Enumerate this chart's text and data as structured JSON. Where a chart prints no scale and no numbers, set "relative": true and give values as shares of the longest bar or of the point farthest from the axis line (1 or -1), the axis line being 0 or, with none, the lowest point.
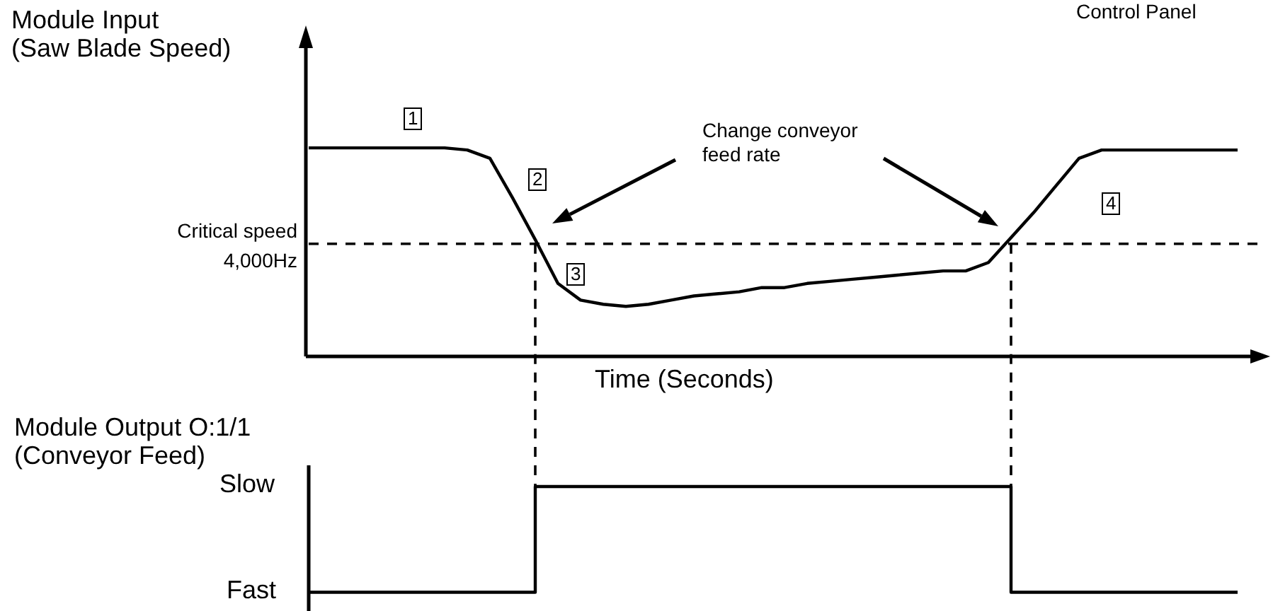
{
  "chart_data": [
    {
      "type": "line",
      "ylabel": "Module Input\n(Saw Blade Speed)",
      "xlabel": "Time (Seconds)",
      "relative": true,
      "marker": "none",
      "line_style": "solid",
      "categories": [
        null,
        null,
        null,
        null,
        null,
        null,
        null,
        null,
        null,
        null,
        null,
        null,
        null,
        null,
        null,
        null,
        null,
        null,
        null,
        null,
        null,
        null,
        null,
        null,
        null,
        null,
        null,
        null,
        null,
        null,
        null,
        null,
        null,
        null,
        null,
        null,
        null,
        null,
        null,
        null,
        null,
        null
      ],
      "series": [
        {
          "color": "#000000",
          "values": [
            1,
            1,
            1,
            1,
            1,
            1,
            1,
            0.99,
            0.95,
            0.76,
            0.56,
            0.35,
            0.27,
            0.25,
            0.24,
            0.25,
            0.27,
            0.29,
            0.3,
            0.31,
            0.33,
            0.33,
            0.35,
            0.36,
            0.37,
            0.38,
            0.39,
            0.4,
            0.41,
            0.41,
            0.45,
            0.57,
            0.69,
            0.82,
            0.95,
            0.99,
            0.99,
            0.99,
            0.99,
            0.99,
            0.99,
            0.99
          ]
        }
      ],
      "ref_lines": [
        {
          "axis": "y",
          "value": 0.54,
          "label": "Critical speed\n4,000Hz",
          "line_style": "dashed"
        }
      ],
      "annotations": [
        "1",
        "2",
        "3",
        "4",
        "Change conveyor feed rate",
        "Control Panel"
      ]
    },
    {
      "type": "step",
      "ylabel": "Module Output O:1/1\n(Conveyor Feed)",
      "relative": true,
      "marker": "none",
      "line_style": "solid",
      "categories": [
        null,
        null,
        null,
        null,
        null,
        null,
        null,
        null,
        null,
        null,
        null,
        null,
        null,
        null,
        null,
        null,
        null,
        null,
        null,
        null,
        null,
        null,
        null,
        null,
        null,
        null,
        null,
        null,
        null,
        null,
        null,
        null,
        null,
        null,
        null,
        null,
        null,
        null,
        null,
        null,
        null,
        null
      ],
      "series": [
        {
          "color": "#000000",
          "values": [
            0,
            0,
            0,
            0,
            0,
            0,
            0,
            0,
            0,
            0,
            1,
            1,
            1,
            1,
            1,
            1,
            1,
            1,
            1,
            1,
            1,
            1,
            1,
            1,
            1,
            1,
            1,
            1,
            1,
            1,
            1,
            0,
            0,
            0,
            0,
            0,
            0,
            0,
            0,
            0,
            0,
            0
          ]
        }
      ],
      "annotations": [
        "Slow",
        "Fast"
      ]
    }
  ]
}
